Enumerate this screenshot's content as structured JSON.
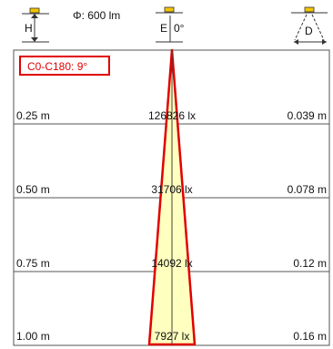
{
  "header": {
    "flux": "Φ: 600 lm",
    "height_symbol": "H",
    "illuminance_symbol": "E",
    "angle_label": "0°",
    "diameter_symbol": "D"
  },
  "badge": {
    "label": "C0-C180: 9°"
  },
  "rows": [
    {
      "distance": "0.25 m",
      "illuminance": "126826 lx",
      "diameter": "0.039 m"
    },
    {
      "distance": "0.50 m",
      "illuminance": "31706 lx",
      "diameter": "0.078 m"
    },
    {
      "distance": "0.75 m",
      "illuminance": "14092 lx",
      "diameter": "0.12 m"
    },
    {
      "distance": "1.00 m",
      "illuminance": "7927 lx",
      "diameter": "0.16 m"
    }
  ],
  "colors": {
    "beam_fill": "#ffffc0",
    "beam_stroke": "#e00000",
    "lamp": "#f2c400",
    "grid": "#555555"
  }
}
